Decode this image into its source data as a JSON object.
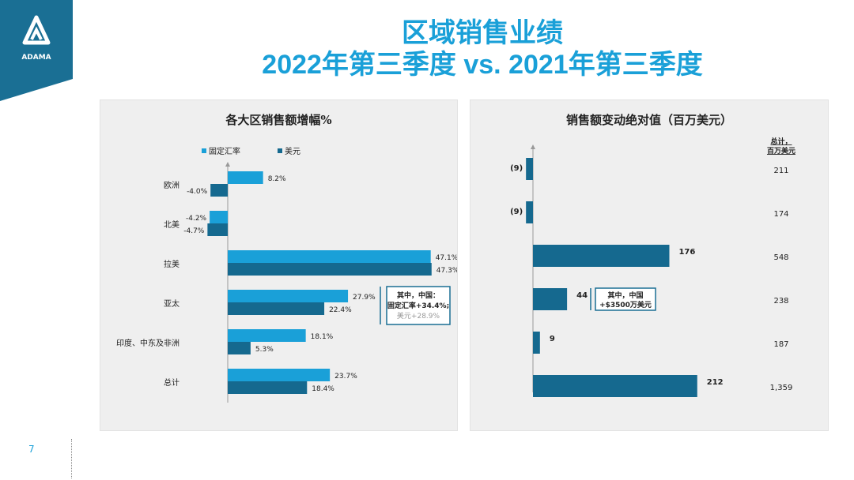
{
  "brand": {
    "name": "ADAMA",
    "color": "#1a6f94"
  },
  "title": {
    "line1": "区域销售业绩",
    "line2": "2022年第三季度 vs. 2021年第三季度",
    "color": "#1aa0d8"
  },
  "page_number": "7",
  "chart_data": [
    {
      "type": "bar",
      "orientation": "horizontal",
      "title": "各大区销售额增幅%",
      "categories": [
        "欧洲",
        "北美",
        "拉美",
        "亚太",
        "印度、中东及非洲",
        "总计"
      ],
      "series": [
        {
          "name": "固定汇率",
          "color": "#1aa0d8",
          "values": [
            8.2,
            -4.2,
            47.1,
            27.9,
            18.1,
            23.7
          ],
          "labels": [
            "8.2%",
            "-4.2%",
            "47.1%",
            "27.9%",
            "18.1%",
            "23.7%"
          ]
        },
        {
          "name": "美元",
          "color": "#15698f",
          "values": [
            -4.0,
            -4.7,
            47.3,
            22.4,
            5.3,
            18.4
          ],
          "labels": [
            "-4.0%",
            "-4.7%",
            "47.3%",
            "22.4%",
            "5.3%",
            "18.4%"
          ]
        }
      ],
      "legend_position": "top-left",
      "annotation": {
        "category": "亚太",
        "line1": "其中，中国：",
        "line2": "固定汇率+34.4%;",
        "line3": "美元+28.9%"
      }
    },
    {
      "type": "bar",
      "orientation": "horizontal",
      "title": "销售额变动绝对值（百万美元）",
      "values": [
        -9,
        -9,
        176,
        44,
        9,
        212
      ],
      "labels": [
        "(9)",
        "(9)",
        "176",
        "44",
        "9",
        "212"
      ],
      "color": "#15698f",
      "totals_header": "总计，\n百万美元",
      "totals": [
        "211",
        "174",
        "548",
        "238",
        "187",
        "1,359"
      ],
      "annotation": {
        "category_index": 3,
        "line1": "其中，中国",
        "line2": "+$3500万美元"
      }
    }
  ]
}
